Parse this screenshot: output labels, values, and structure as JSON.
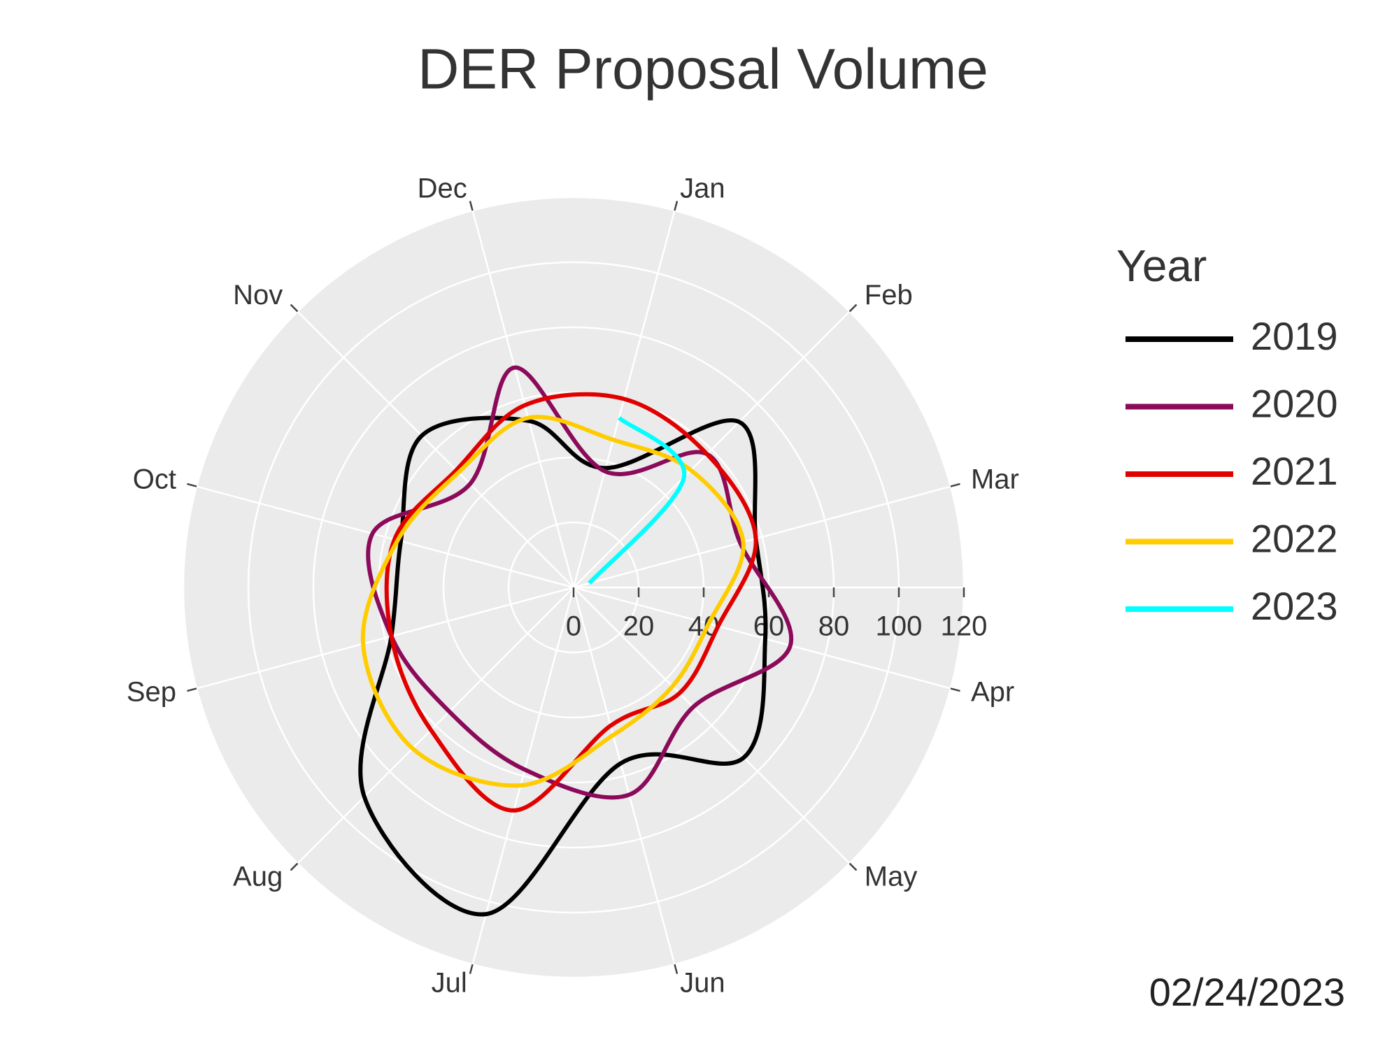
{
  "chart_data": {
    "type": "polar_line",
    "title": "DER Proposal Volume",
    "legend_title": "Year",
    "annotation": "02/24/2023",
    "direction": "clockwise",
    "rotation": 75,
    "categories": [
      "Jan",
      "Feb",
      "Mar",
      "Apr",
      "May",
      "Jun",
      "Jul",
      "Aug",
      "Sep",
      "Oct",
      "Nov",
      "Dec"
    ],
    "rlim": [
      0,
      120
    ],
    "rticks": [
      0,
      20,
      40,
      60,
      80,
      100,
      120
    ],
    "grid": true,
    "background": "#ebebeb",
    "legend": "right",
    "series": [
      {
        "name": "2019",
        "color": "#000000",
        "closed": true,
        "values": [
          38,
          72,
          58,
          61,
          74,
          56,
          104,
          91,
          58,
          55,
          66,
          53
        ]
      },
      {
        "name": "2020",
        "color": "#8b0a5a",
        "closed": true,
        "values": [
          37,
          58,
          53,
          69,
          52,
          66,
          58,
          54,
          58,
          64,
          45,
          70
        ]
      },
      {
        "name": "2021",
        "color": "#e00000",
        "closed": true,
        "values": [
          60,
          58,
          58,
          46,
          46,
          44,
          71,
          62,
          58,
          57,
          51,
          58
        ]
      },
      {
        "name": "2022",
        "color": "#ffcc00",
        "closed": true,
        "values": [
          47,
          51,
          54,
          43,
          43,
          47,
          63,
          70,
          67,
          56,
          50,
          54
        ]
      },
      {
        "name": "2023",
        "color": "#00ffff",
        "closed": false,
        "values": [
          54,
          48,
          5,
          null,
          null,
          null,
          null,
          null,
          null,
          null,
          null,
          null
        ]
      }
    ]
  }
}
